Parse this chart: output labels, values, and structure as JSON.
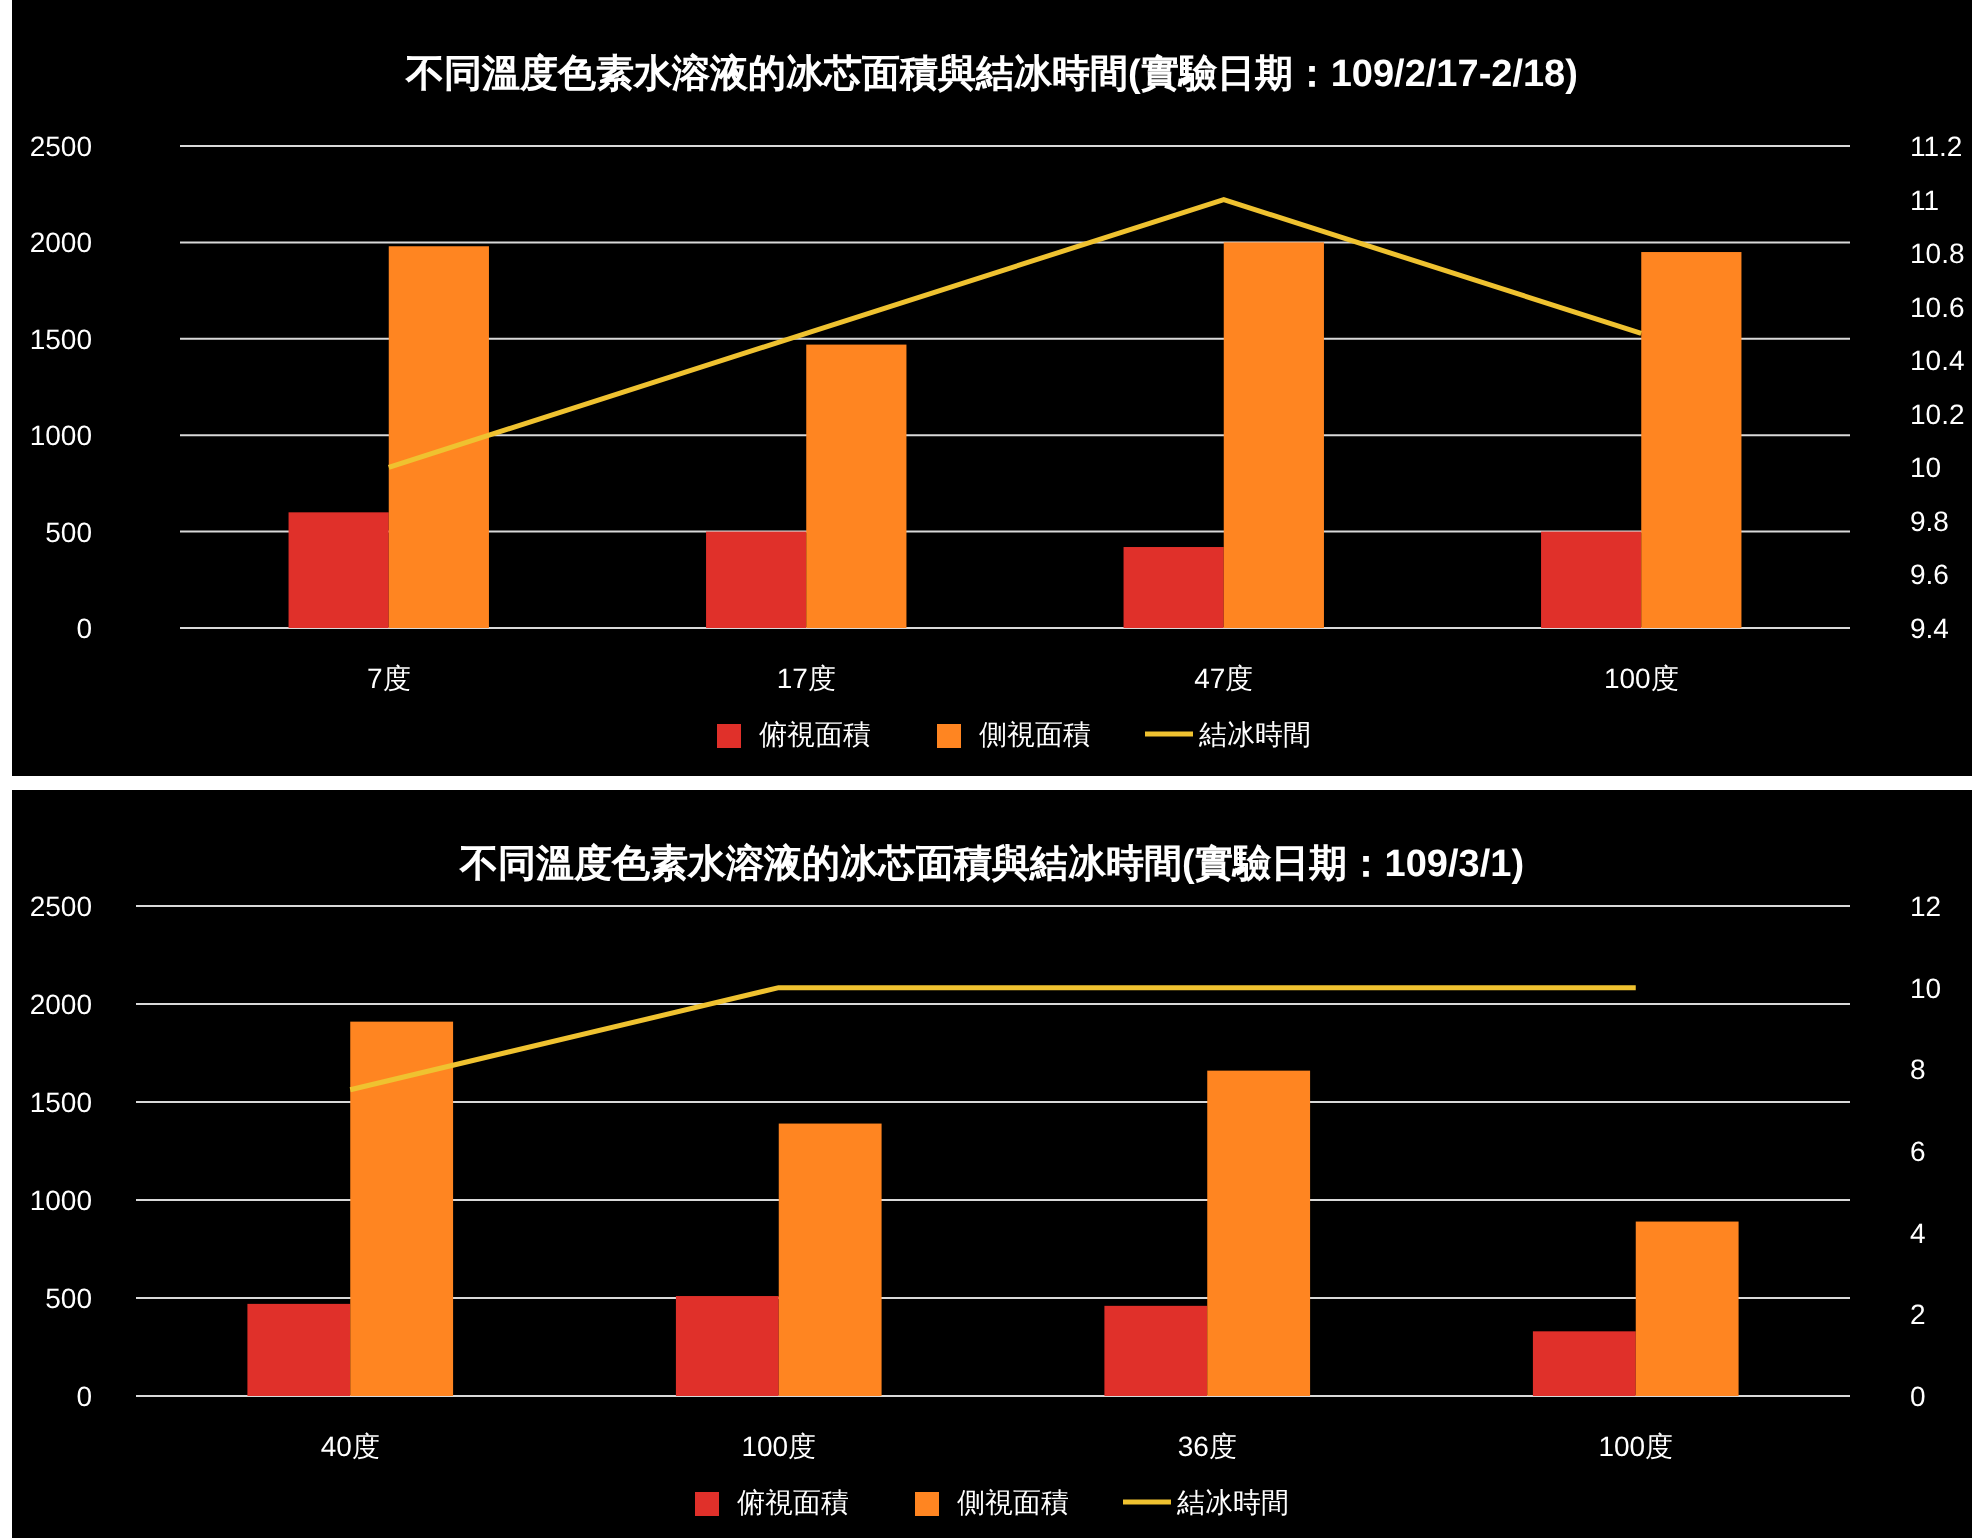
{
  "chart_data": [
    {
      "type": "bar",
      "title": "不同溫度色素水溶液的冰芯面積與結冰時間(實驗日期：109/2/17-2/18)",
      "categories": [
        "7度",
        "17度",
        "47度",
        "100度"
      ],
      "series": [
        {
          "name": "俯視面積",
          "color": "#e0302a",
          "values": [
            600,
            500,
            420,
            500
          ]
        },
        {
          "name": "側視面積",
          "color": "#ff8521",
          "values": [
            1980,
            1470,
            2000,
            1950
          ]
        },
        {
          "name": "結冰時間",
          "type": "line",
          "axis": "y2",
          "color": "#efc230",
          "values": [
            10.0,
            10.5,
            11.0,
            10.5
          ]
        }
      ],
      "ylim": [
        0,
        2500
      ],
      "yticks": [
        0,
        500,
        1000,
        1500,
        2000,
        2500
      ],
      "y2lim": [
        9.4,
        11.2
      ],
      "y2ticks": [
        9.4,
        9.6,
        9.8,
        10,
        10.2,
        10.4,
        10.6,
        10.8,
        11,
        11.2
      ],
      "grid": "y",
      "legend": "bottom",
      "marker": "none"
    },
    {
      "type": "bar",
      "title": "不同溫度色素水溶液的冰芯面積與結冰時間(實驗日期：109/3/1)",
      "categories": [
        "40度",
        "100度",
        "36度",
        "100度"
      ],
      "series": [
        {
          "name": "俯視面積",
          "color": "#e0302a",
          "values": [
            470,
            510,
            460,
            330
          ]
        },
        {
          "name": "側視面積",
          "color": "#ff8521",
          "values": [
            1910,
            1390,
            1660,
            890
          ]
        },
        {
          "name": "結冰時間",
          "type": "line",
          "axis": "y2",
          "color": "#efc230",
          "values": [
            7.5,
            10,
            10,
            10
          ]
        }
      ],
      "ylim": [
        0,
        2500
      ],
      "yticks": [
        0,
        500,
        1000,
        1500,
        2000,
        2500
      ],
      "y2lim": [
        0,
        12
      ],
      "y2ticks": [
        0,
        2,
        4,
        6,
        8,
        10,
        12
      ],
      "grid": "y",
      "legend": "bottom",
      "marker": "none"
    }
  ]
}
